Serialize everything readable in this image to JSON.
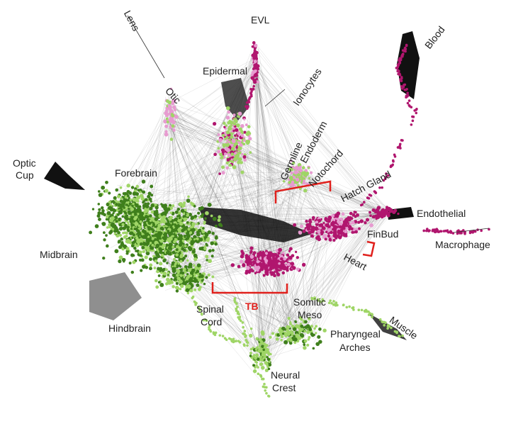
{
  "figure": {
    "colors": {
      "edges": "#1a1a1a",
      "dark_green": "#3f7f1c",
      "light_green": "#9fd566",
      "magenta": "#b0166e",
      "pink": "#e79bd0",
      "bracket_red": "#e0201c"
    },
    "labels": {
      "lens": "Lens",
      "evl": "EVL",
      "blood": "Blood",
      "epidermal": "Epidermal",
      "ionocytes": "Ionocytes",
      "otic": "Otic",
      "endoderm": "Endoderm",
      "germline": "Germline",
      "notochord": "Notochord",
      "hatch_gland": "Hatch Gland",
      "optic_cup_1": "Optic",
      "optic_cup_2": "Cup",
      "forebrain": "Forebrain",
      "endothelial": "Endothelial",
      "finbud": "FinBud",
      "macrophage": "Macrophage",
      "midbrain": "Midbrain",
      "heart": "Heart",
      "spinal_cord_1": "Spinal",
      "spinal_cord_2": "Cord",
      "tb": "TB",
      "somitic_meso_1": "Somitic",
      "somitic_meso_2": "Meso",
      "hindbrain": "Hindbrain",
      "muscle": "Muscle",
      "pharyngeal_1": "Pharyngeal",
      "pharyngeal_2": "Arches",
      "neural_crest_1": "Neural",
      "neural_crest_2": "Crest"
    }
  }
}
